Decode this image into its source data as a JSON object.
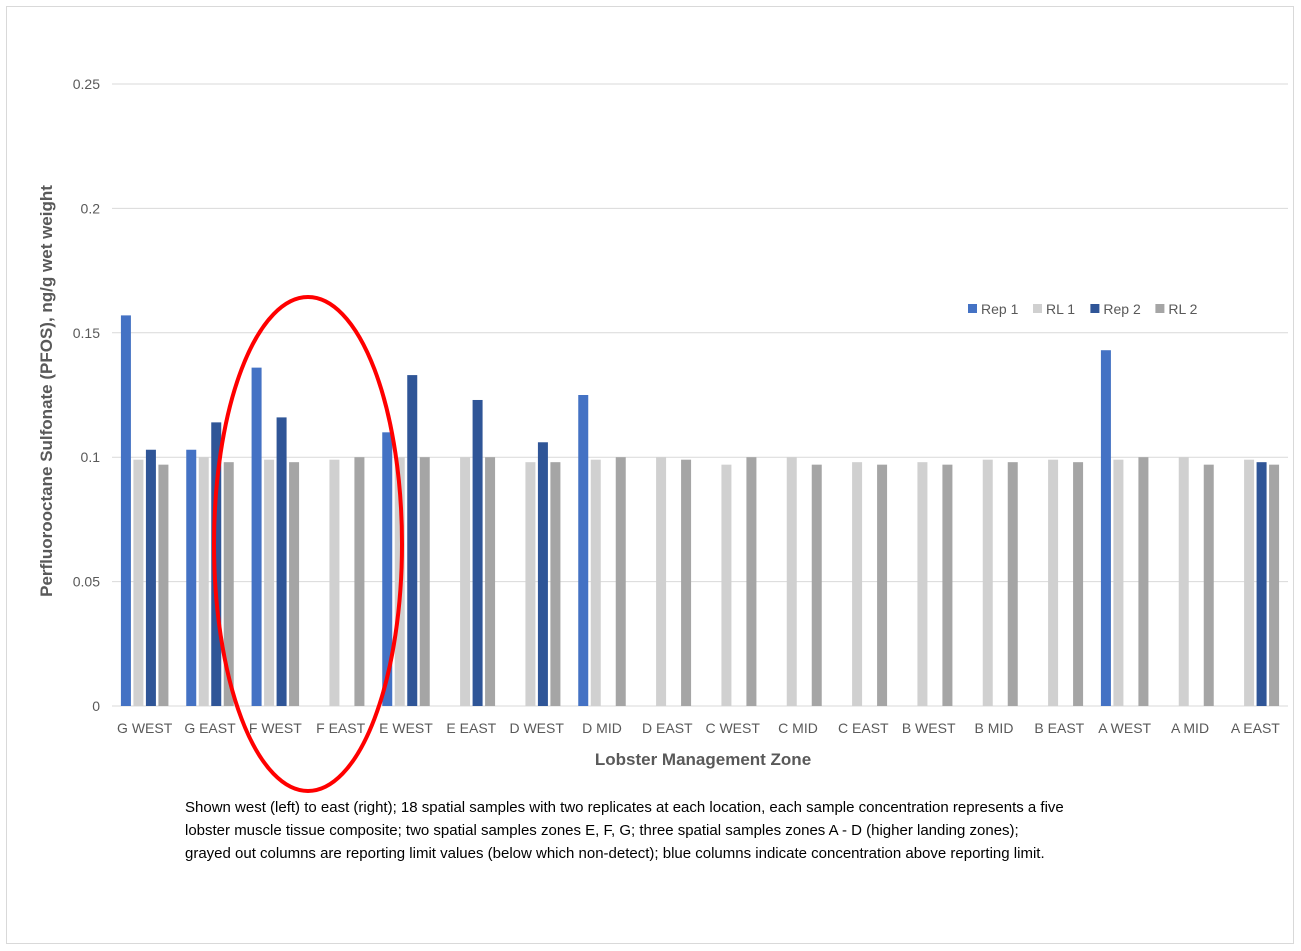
{
  "chart_data": {
    "type": "bar",
    "title": "",
    "xlabel": "Lobster Management Zone",
    "ylabel": "Perfluorooctane Sulfonate (PFOS), ng/g wet weight",
    "ylim": [
      0,
      0.25
    ],
    "yticks": [
      "0",
      "0.05",
      "0.1",
      "0.15",
      "0.2",
      "0.25"
    ],
    "grid": true,
    "legend_position": "top-right",
    "categories": [
      "G WEST",
      "G EAST",
      "F WEST",
      "F EAST",
      "E WEST",
      "E EAST",
      "D WEST",
      "D MID",
      "D EAST",
      "C WEST",
      "C MID",
      "C EAST",
      "B WEST",
      "B MID",
      "B EAST",
      "A WEST",
      "A MID",
      "A EAST"
    ],
    "series": [
      {
        "name": "Rep 1",
        "color": "#4472c4",
        "values": [
          0.157,
          0.103,
          0.136,
          null,
          0.11,
          null,
          null,
          0.125,
          null,
          null,
          null,
          null,
          null,
          null,
          null,
          0.143,
          null,
          null
        ]
      },
      {
        "name": "RL 1",
        "color": "#d0d0d0",
        "values": [
          0.099,
          0.1,
          0.099,
          0.099,
          0.1,
          0.1,
          0.098,
          0.099,
          0.1,
          0.097,
          0.1,
          0.098,
          0.098,
          0.099,
          0.099,
          0.099,
          0.1,
          0.099
        ]
      },
      {
        "name": "Rep 2",
        "color": "#2f5597",
        "values": [
          0.103,
          0.114,
          0.116,
          null,
          0.133,
          0.123,
          0.106,
          null,
          null,
          null,
          null,
          null,
          null,
          null,
          null,
          null,
          null,
          0.098
        ]
      },
      {
        "name": "RL 2",
        "color": "#a5a5a5",
        "values": [
          0.097,
          0.098,
          0.098,
          0.1,
          0.1,
          0.1,
          0.098,
          0.1,
          0.099,
          0.1,
          0.097,
          0.097,
          0.097,
          0.098,
          0.098,
          0.1,
          0.097,
          0.097
        ]
      }
    ],
    "annotation": {
      "type": "ellipse",
      "color": "#ff0000",
      "around": [
        "F WEST",
        "F EAST"
      ]
    }
  },
  "caption": "Shown west (left) to east (right); 18 spatial samples with two replicates at each location, each sample concentration represents a five lobster muscle tissue composite; two spatial samples zones E, F, G; three spatial samples zones A - D (higher landing zones); grayed out columns are reporting limit values (below which non-detect); blue columns indicate concentration above reporting limit."
}
